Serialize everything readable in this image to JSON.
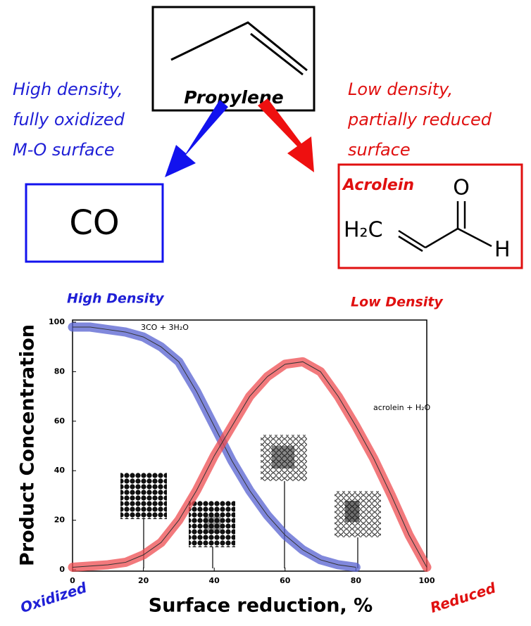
{
  "diagram": {
    "reactant": "Propylene",
    "left_condition": [
      "High density,",
      "fully oxidized",
      "M-O surface"
    ],
    "right_condition": [
      "Low density,",
      "partially reduced",
      "surface"
    ],
    "left_product": "CO",
    "right_product": {
      "name": "Acrolein",
      "atoms": [
        "O",
        "H₂C",
        "H"
      ]
    }
  },
  "chart_data": {
    "type": "line",
    "x": [
      0,
      5,
      10,
      15,
      20,
      25,
      30,
      35,
      40,
      45,
      50,
      55,
      60,
      65,
      70,
      75,
      80,
      85,
      90,
      95,
      100
    ],
    "series": [
      {
        "name": "3CO + 3H₂O",
        "color": "#5560d0",
        "values": [
          98,
          98,
          97,
          96,
          94,
          90,
          84,
          72,
          58,
          44,
          32,
          22,
          14,
          8,
          4,
          2,
          1,
          null,
          null,
          null,
          null
        ]
      },
      {
        "name": "acrolein + H₂O",
        "color": "#ee4c50",
        "values": [
          1,
          1.5,
          2,
          3,
          6,
          11,
          20,
          32,
          46,
          58,
          70,
          78,
          83,
          84,
          80,
          70,
          58,
          45,
          30,
          14,
          1
        ]
      }
    ],
    "xlabel": "Surface reduction, %",
    "ylabel": "Product Concentration",
    "xlim": [
      0,
      100
    ],
    "ylim": [
      0,
      100
    ],
    "xticks": [
      0,
      20,
      40,
      60,
      80,
      100
    ],
    "yticks": [
      0,
      20,
      40,
      60,
      80,
      100
    ],
    "annotations": [
      "High Density",
      "Low Density",
      "Oxidized",
      "Reduced"
    ]
  }
}
